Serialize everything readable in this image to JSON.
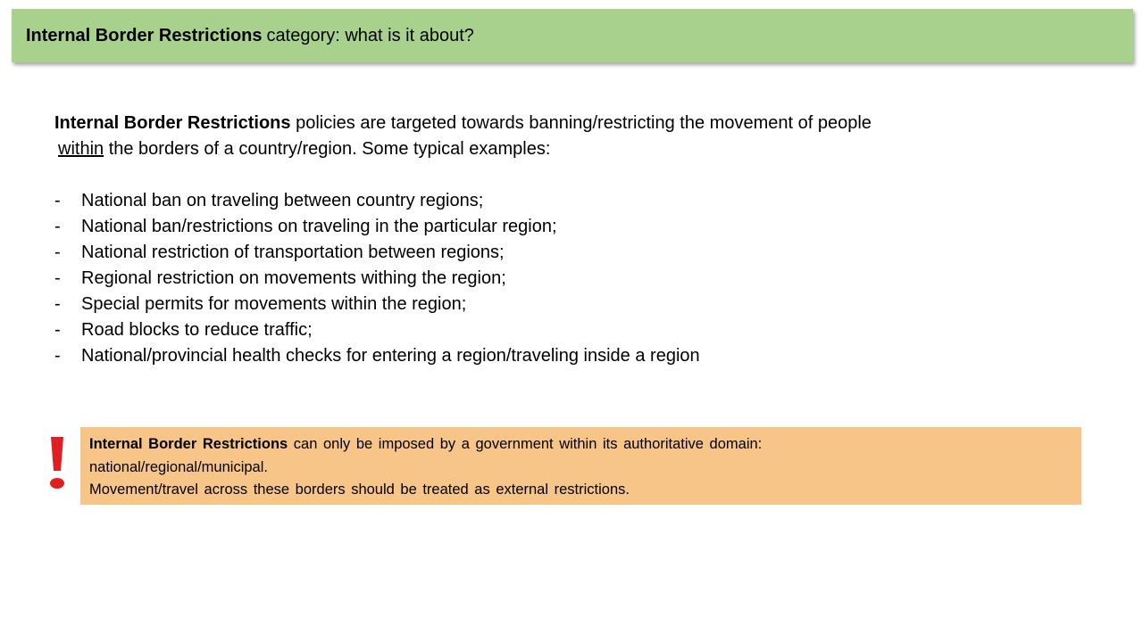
{
  "header": {
    "title_bold": "Internal Border Restrictions",
    "title_rest": "category: what is it about?"
  },
  "intro": {
    "bold": "Internal Border Restrictions",
    "text1": " policies are targeted towards banning/restricting the movement of people",
    "underlined": "within",
    "text2": " the borders of a country/region. Some typical examples:"
  },
  "examples": [
    "National ban on traveling between country regions;",
    "National ban/restrictions on traveling in the particular region;",
    "National restriction of transportation between regions;",
    "Regional restriction on movements withing the region;",
    "Special permits for movements within the region;",
    "Road blocks to reduce traffic;",
    "National/provincial health checks for entering a region/traveling inside a region"
  ],
  "note": {
    "bold": "Internal Border Restrictions",
    "line1": " can only be imposed by a government within its authoritative domain:",
    "line2": "national/regional/municipal.",
    "line3": "Movement/travel across these borders should be treated as external restrictions."
  },
  "colors": {
    "header_bg": "#a9d18e",
    "note_bg": "#f6c587",
    "alert": "#e02020"
  },
  "icons": {
    "alert": "exclamation-icon"
  }
}
